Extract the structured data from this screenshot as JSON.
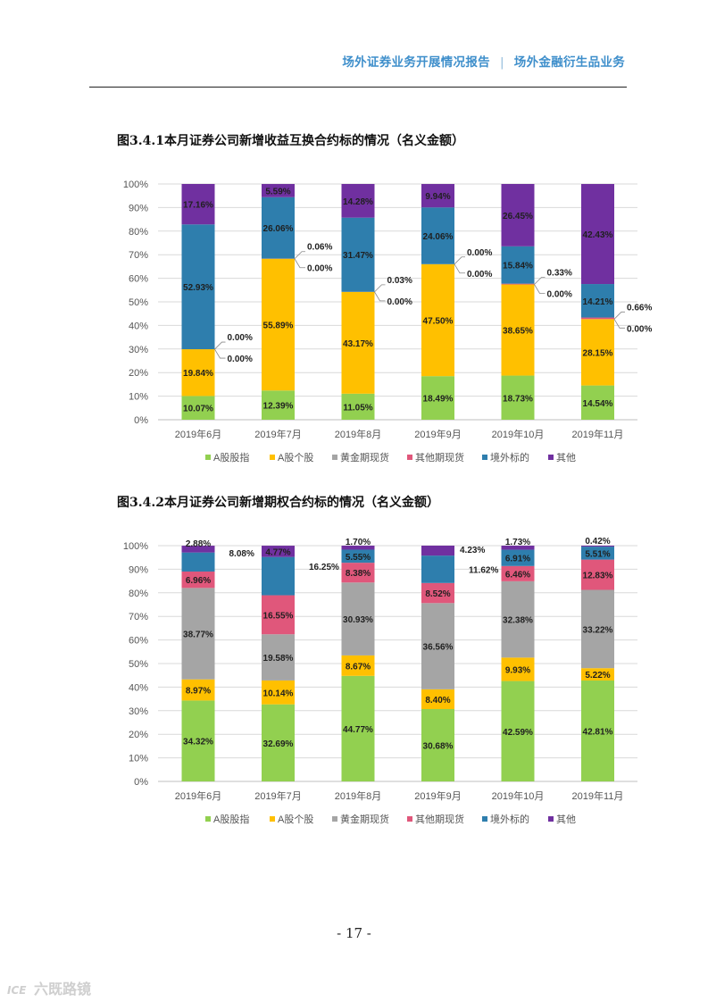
{
  "header": {
    "left_title": "场外证券业务开展情况报告",
    "separator": "|",
    "right_title": "场外金融衍生品业务"
  },
  "page_number": "- 17 -",
  "watermark": {
    "logo": "ICE",
    "text": "六既路镜"
  },
  "colors": {
    "A股股指": "#92d050",
    "A股个股": "#ffc000",
    "黄金期现货": "#a5a5a5",
    "其他期现货": "#e0577b",
    "境外标的": "#2e7ead",
    "其他": "#7030a0"
  },
  "chart_data": [
    {
      "type": "bar",
      "stacked": true,
      "title": "图3.4.1本月证券公司新增收益互换合约标的情况（名义金额）",
      "categories": [
        "2019年6月",
        "2019年7月",
        "2019年8月",
        "2019年9月",
        "2019年10月",
        "2019年11月"
      ],
      "ylim": [
        0,
        100
      ],
      "yticks": [
        "0%",
        "10%",
        "20%",
        "30%",
        "40%",
        "50%",
        "60%",
        "70%",
        "80%",
        "90%",
        "100%"
      ],
      "legend_position": "bottom",
      "series": [
        {
          "name": "A股股指",
          "values": [
            10.07,
            12.39,
            11.05,
            18.49,
            18.73,
            14.54
          ],
          "labels": [
            "10.07%",
            "12.39%",
            "11.05%",
            "18.49%",
            "18.73%",
            "14.54%"
          ]
        },
        {
          "name": "A股个股",
          "values": [
            19.84,
            55.89,
            43.17,
            47.5,
            38.65,
            28.15
          ],
          "labels": [
            "19.84%",
            "55.89%",
            "43.17%",
            "47.50%",
            "38.65%",
            "28.15%"
          ]
        },
        {
          "name": "黄金期现货",
          "values": [
            0,
            0,
            0,
            0,
            0,
            0
          ],
          "labels": [
            "0.00%",
            "0.00%",
            "0.00%",
            "0.00%",
            "0.00%",
            "0.00%"
          ]
        },
        {
          "name": "其他期现货",
          "values": [
            0,
            0.06,
            0.03,
            0,
            0.33,
            0.66
          ],
          "labels": [
            "0.00%",
            "0.06%",
            "0.03%",
            "0.00%",
            "0.33%",
            "0.66%"
          ]
        },
        {
          "name": "境外标的",
          "values": [
            52.93,
            26.06,
            31.47,
            24.06,
            15.84,
            14.21
          ],
          "labels": [
            "52.93%",
            "26.06%",
            "31.47%",
            "24.06%",
            "15.84%",
            "14.21%"
          ]
        },
        {
          "name": "其他",
          "values": [
            17.16,
            5.59,
            14.28,
            9.94,
            26.45,
            42.43
          ],
          "labels": [
            "17.16%",
            "5.59%",
            "14.28%",
            "9.94%",
            "26.45%",
            "42.43%"
          ]
        }
      ],
      "callout_series": [
        "黄金期现货",
        "其他期现货"
      ]
    },
    {
      "type": "bar",
      "stacked": true,
      "title": "图3.4.2本月证券公司新增期权合约标的情况（名义金额）",
      "categories": [
        "2019年6月",
        "2019年7月",
        "2019年8月",
        "2019年9月",
        "2019年10月",
        "2019年11月"
      ],
      "ylim": [
        0,
        100
      ],
      "yticks": [
        "0%",
        "10%",
        "20%",
        "30%",
        "40%",
        "50%",
        "60%",
        "70%",
        "80%",
        "90%",
        "100%"
      ],
      "legend_position": "bottom",
      "series": [
        {
          "name": "A股股指",
          "values": [
            34.32,
            32.69,
            44.77,
            30.68,
            42.59,
            42.81
          ],
          "labels": [
            "34.32%",
            "32.69%",
            "44.77%",
            "30.68%",
            "42.59%",
            "42.81%"
          ]
        },
        {
          "name": "A股个股",
          "values": [
            8.97,
            10.14,
            8.67,
            8.4,
            9.93,
            5.22
          ],
          "labels": [
            "8.97%",
            "10.14%",
            "8.67%",
            "8.40%",
            "9.93%",
            "5.22%"
          ]
        },
        {
          "name": "黄金期现货",
          "values": [
            38.77,
            19.58,
            30.93,
            36.56,
            32.38,
            33.22
          ],
          "labels": [
            "38.77%",
            "19.58%",
            "30.93%",
            "36.56%",
            "32.38%",
            "33.22%"
          ]
        },
        {
          "name": "其他期现货",
          "values": [
            6.96,
            16.55,
            8.38,
            8.52,
            6.46,
            12.83
          ],
          "labels": [
            "6.96%",
            "16.55%",
            "8.38%",
            "8.52%",
            "6.46%",
            "12.83%"
          ]
        },
        {
          "name": "境外标的",
          "values": [
            8.08,
            16.25,
            5.55,
            11.62,
            6.91,
            5.51
          ],
          "labels": [
            "8.08%",
            "16.25%",
            "5.55%",
            "11.62%",
            "6.91%",
            "5.51%"
          ]
        },
        {
          "name": "其他",
          "values": [
            2.88,
            4.77,
            1.7,
            4.23,
            1.73,
            0.42
          ],
          "labels": [
            "2.88%",
            "4.77%",
            "1.70%",
            "4.23%",
            "1.73%",
            "0.42%"
          ]
        }
      ],
      "callout_series": []
    }
  ]
}
